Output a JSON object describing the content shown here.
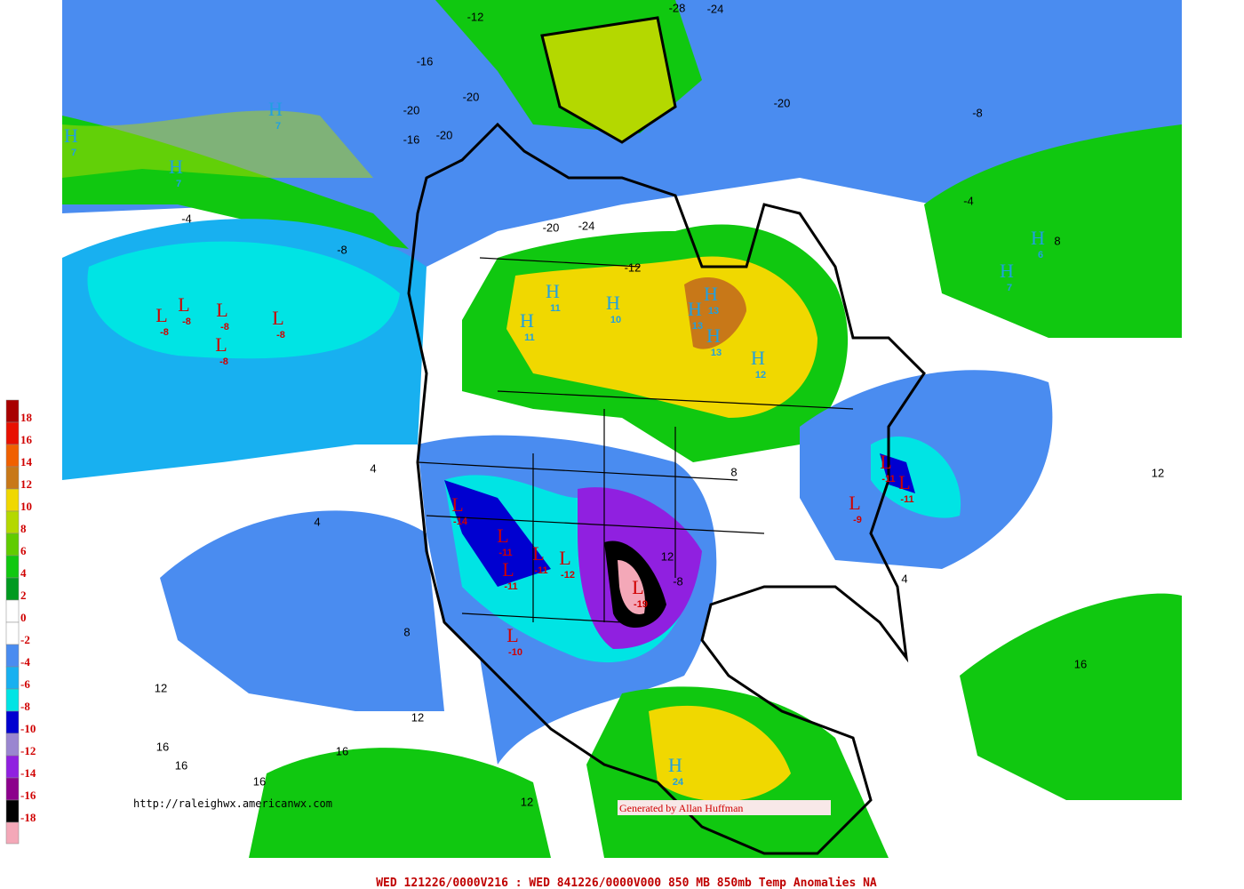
{
  "legend": [
    {
      "value": 18,
      "color": "#a80000"
    },
    {
      "value": 16,
      "color": "#e81000"
    },
    {
      "value": 14,
      "color": "#f06000"
    },
    {
      "value": 12,
      "color": "#c87818"
    },
    {
      "value": 10,
      "color": "#f0d800"
    },
    {
      "value": 8,
      "color": "#b4d800"
    },
    {
      "value": 6,
      "color": "#60cc00"
    },
    {
      "value": 4,
      "color": "#10c810"
    },
    {
      "value": 2,
      "color": "#009a20"
    },
    {
      "value": 0,
      "color": "#ffffff"
    },
    {
      "value": -2,
      "color": "#ffffff"
    },
    {
      "value": -4,
      "color": "#4a8cf0"
    },
    {
      "value": -6,
      "color": "#18b0f0"
    },
    {
      "value": -8,
      "color": "#00e4e4"
    },
    {
      "value": -10,
      "color": "#0000d0"
    },
    {
      "value": -12,
      "color": "#9a86d0"
    },
    {
      "value": -14,
      "color": "#9020e0"
    },
    {
      "value": -16,
      "color": "#8c008c"
    },
    {
      "value": -18,
      "color": "#000000"
    }
  ],
  "legend_bottom_color": "#f4a8b8",
  "footer": "WED 121226/0000V216 : WED 841226/0000V000  850 MB 850mb Temp Anomalies NA",
  "url": "http://raleighwx.americanwx.com",
  "credit": "Generated by Allan Huffman",
  "centers": [
    {
      "letter": "H",
      "value": "7"
    },
    {
      "letter": "H",
      "value": "7"
    },
    {
      "letter": "H",
      "value": "7"
    },
    {
      "letter": "H",
      "value": "11"
    },
    {
      "letter": "H",
      "value": "11"
    },
    {
      "letter": "H",
      "value": "10"
    },
    {
      "letter": "H",
      "value": "13"
    },
    {
      "letter": "H",
      "value": "13"
    },
    {
      "letter": "H",
      "value": "13"
    },
    {
      "letter": "H",
      "value": "12"
    },
    {
      "letter": "H",
      "value": "6"
    },
    {
      "letter": "H",
      "value": "7"
    },
    {
      "letter": "H",
      "value": "24"
    },
    {
      "letter": "L",
      "value": "-8"
    },
    {
      "letter": "L",
      "value": "-8"
    },
    {
      "letter": "L",
      "value": "-8"
    },
    {
      "letter": "L",
      "value": "-8"
    },
    {
      "letter": "L",
      "value": "-8"
    },
    {
      "letter": "L",
      "value": "-19"
    },
    {
      "letter": "L",
      "value": "-14"
    },
    {
      "letter": "L",
      "value": "-11"
    },
    {
      "letter": "L",
      "value": "-11"
    },
    {
      "letter": "L",
      "value": "-12"
    },
    {
      "letter": "L",
      "value": "-11"
    },
    {
      "letter": "L",
      "value": "-10"
    },
    {
      "letter": "L",
      "value": "-9"
    },
    {
      "letter": "L",
      "value": "-11"
    },
    {
      "letter": "L",
      "value": "-11"
    }
  ],
  "contour_labels": [
    "-16",
    "-12",
    "-20",
    "-20",
    "-16",
    "-20",
    "-24",
    "-20",
    "-12",
    "-4",
    "-8",
    "-4",
    "8",
    "12",
    "4",
    "4",
    "8",
    "12",
    "12",
    "16",
    "16",
    "16",
    "16",
    "12",
    "16",
    "4",
    "8",
    "-8",
    "12",
    "-20",
    "-8",
    "-24",
    "-28"
  ]
}
